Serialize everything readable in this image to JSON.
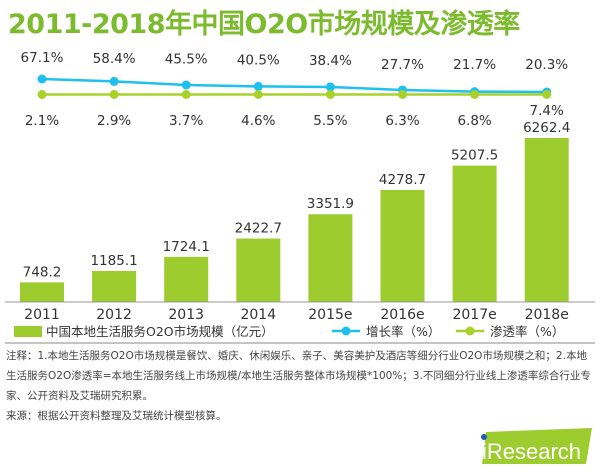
{
  "title": "2011-2018年中国O2O市场规模及渗透率",
  "chart_data": {
    "type": "bar+line",
    "title": "2011-2018年中国O2O市场规模及渗透率",
    "categories": [
      "2011",
      "2012",
      "2013",
      "2014",
      "2015e",
      "2016e",
      "2017e",
      "2018e"
    ],
    "series": [
      {
        "name": "中国本地生活服务O2O市场规模（亿元）",
        "type": "bar",
        "color": "#9ccc2e",
        "values": [
          748.2,
          1185.1,
          1724.1,
          2422.7,
          3351.9,
          4278.7,
          5207.5,
          6262.4
        ],
        "labels": [
          "748.2",
          "1185.1",
          "1724.1",
          "2422.7",
          "3351.9",
          "4278.7",
          "5207.5",
          "6262.4"
        ]
      },
      {
        "name": "增长率（%）",
        "type": "line",
        "color": "#1ec0ef",
        "values": [
          67.1,
          58.4,
          45.5,
          40.5,
          38.4,
          27.7,
          21.7,
          20.3
        ],
        "labels": [
          "67.1%",
          "58.4%",
          "45.5%",
          "40.5%",
          "38.4%",
          "27.7%",
          "21.7%",
          "20.3%"
        ]
      },
      {
        "name": "渗透率（%）",
        "type": "line",
        "color": "#a8d12a",
        "values": [
          2.1,
          2.9,
          3.7,
          4.6,
          5.5,
          6.3,
          6.8,
          7.4
        ],
        "labels": [
          "2.1%",
          "2.9%",
          "3.7%",
          "4.6%",
          "5.5%",
          "6.3%",
          "6.8%",
          "7.4%"
        ]
      }
    ],
    "legend": "bottom",
    "grid": false
  },
  "notes": {
    "line1": "注释：1.本地生活服务O2O市场规模是餐饮、婚庆、休闲娱乐、亲子、美容美护及酒店等细分行业O2O市场规模之和；2.本地生活服务O2O渗透率=本地生活服务线上市场规模/本地生活服务整体市场规模*100%；3.不同细分行业线上渗透率综合行业专家、公开资料及艾瑞研究积累。",
    "source": "来源：根据公开资料整理及艾瑞统计模型核算。"
  },
  "logo": "iResearch"
}
